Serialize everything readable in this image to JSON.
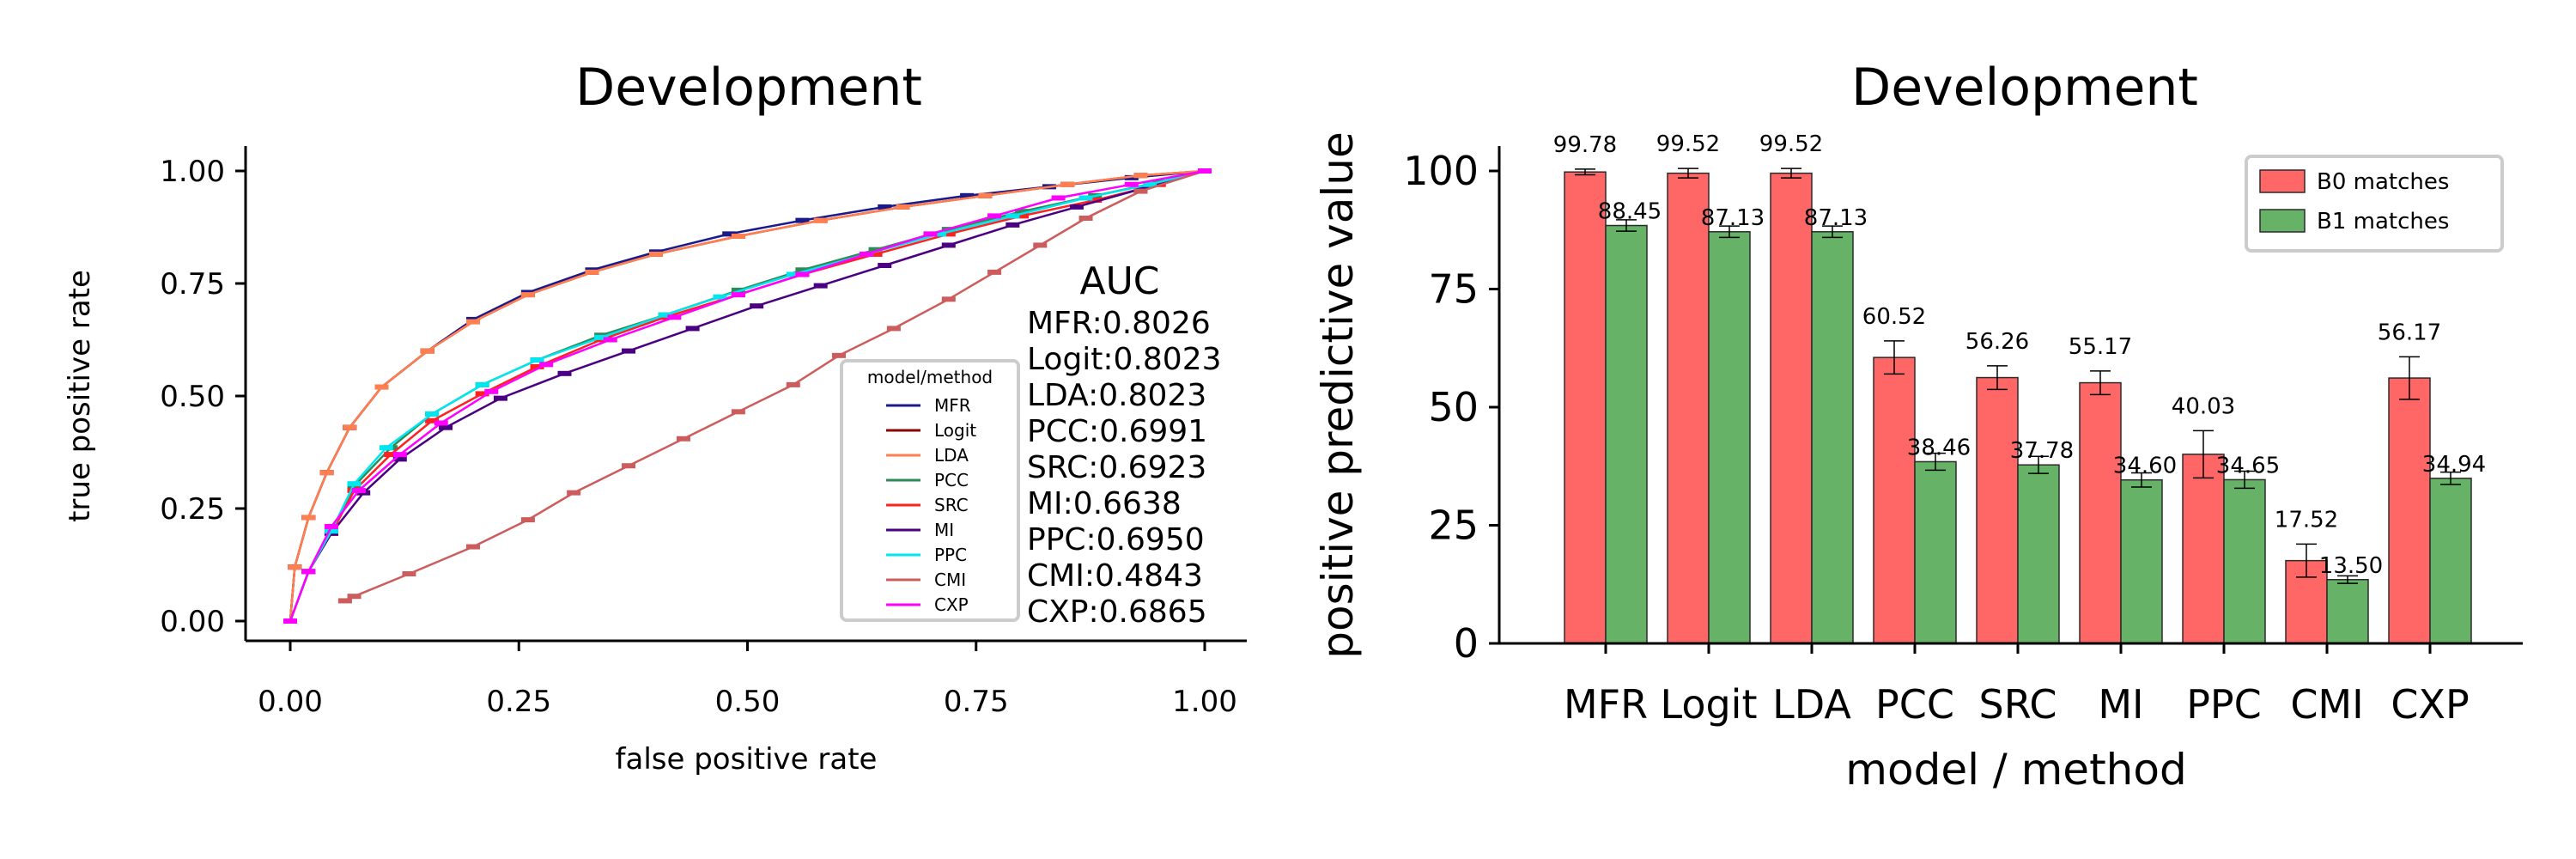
{
  "chart_data": [
    {
      "type": "line",
      "title": "Development",
      "xlabel": "false positive rate",
      "ylabel": "true positive rate",
      "xlim": [
        0,
        1
      ],
      "ylim": [
        0,
        1
      ],
      "xticks": [
        "0.00",
        "0.25",
        "0.50",
        "0.75",
        "1.00"
      ],
      "yticks": [
        "0.00",
        "0.25",
        "0.50",
        "0.75",
        "1.00"
      ],
      "grid": false,
      "legend": {
        "title": "model/method",
        "placement": "lower-right"
      },
      "auc_title": "AUC",
      "auc_labels": [
        "MFR:0.8026",
        "Logit:0.8023",
        "LDA:0.8023",
        "PCC:0.6991",
        "SRC:0.6923",
        "MI:0.6638",
        "PPC:0.6950",
        "CMI:0.4843",
        "CXP:0.6865"
      ],
      "series": [
        {
          "name": "MFR",
          "color": "#1a1a8c",
          "x": [
            0.0,
            0.005,
            0.02,
            0.04,
            0.065,
            0.1,
            0.15,
            0.2,
            0.26,
            0.33,
            0.4,
            0.48,
            0.56,
            0.65,
            0.74,
            0.83,
            0.92,
            1.0
          ],
          "y": [
            0.0,
            0.12,
            0.23,
            0.33,
            0.43,
            0.52,
            0.6,
            0.67,
            0.73,
            0.78,
            0.82,
            0.86,
            0.89,
            0.92,
            0.945,
            0.965,
            0.985,
            1.0
          ]
        },
        {
          "name": "Logit",
          "color": "#8b0000",
          "x": [
            0.0,
            0.005,
            0.02,
            0.04,
            0.065,
            0.1,
            0.15,
            0.2,
            0.26,
            0.33,
            0.4,
            0.49,
            0.58,
            0.67,
            0.76,
            0.85,
            0.93,
            1.0
          ],
          "y": [
            0.0,
            0.12,
            0.23,
            0.33,
            0.43,
            0.52,
            0.6,
            0.665,
            0.725,
            0.775,
            0.815,
            0.855,
            0.89,
            0.92,
            0.945,
            0.97,
            0.99,
            1.0
          ]
        },
        {
          "name": "LDA",
          "color": "#ff7f50",
          "x": [
            0.0,
            0.005,
            0.02,
            0.04,
            0.065,
            0.1,
            0.15,
            0.2,
            0.26,
            0.33,
            0.4,
            0.49,
            0.58,
            0.67,
            0.76,
            0.85,
            0.93,
            1.0
          ],
          "y": [
            0.0,
            0.12,
            0.23,
            0.33,
            0.43,
            0.52,
            0.6,
            0.665,
            0.725,
            0.775,
            0.815,
            0.855,
            0.89,
            0.92,
            0.945,
            0.97,
            0.99,
            1.0
          ]
        },
        {
          "name": "PCC",
          "color": "#2e8b57",
          "x": [
            0.0,
            0.02,
            0.045,
            0.07,
            0.11,
            0.155,
            0.21,
            0.27,
            0.34,
            0.41,
            0.49,
            0.56,
            0.64,
            0.72,
            0.8,
            0.88,
            0.95,
            1.0
          ],
          "y": [
            0.0,
            0.11,
            0.2,
            0.3,
            0.385,
            0.46,
            0.525,
            0.58,
            0.635,
            0.68,
            0.735,
            0.78,
            0.825,
            0.87,
            0.91,
            0.945,
            0.975,
            1.0
          ]
        },
        {
          "name": "SRC",
          "color": "#ff2020",
          "x": [
            0.0,
            0.02,
            0.045,
            0.07,
            0.11,
            0.155,
            0.21,
            0.27,
            0.34,
            0.41,
            0.49,
            0.56,
            0.64,
            0.72,
            0.8,
            0.88,
            0.95,
            1.0
          ],
          "y": [
            0.0,
            0.11,
            0.195,
            0.29,
            0.37,
            0.445,
            0.505,
            0.565,
            0.625,
            0.675,
            0.725,
            0.77,
            0.815,
            0.86,
            0.9,
            0.935,
            0.97,
            1.0
          ]
        },
        {
          "name": "MI",
          "color": "#4b0082",
          "x": [
            0.0,
            0.02,
            0.045,
            0.08,
            0.12,
            0.17,
            0.23,
            0.3,
            0.37,
            0.44,
            0.51,
            0.58,
            0.65,
            0.72,
            0.79,
            0.86,
            0.93,
            1.0
          ],
          "y": [
            0.0,
            0.11,
            0.195,
            0.285,
            0.36,
            0.43,
            0.495,
            0.55,
            0.6,
            0.65,
            0.7,
            0.745,
            0.79,
            0.835,
            0.88,
            0.92,
            0.96,
            1.0
          ]
        },
        {
          "name": "PPC",
          "color": "#00e5ee",
          "x": [
            0.0,
            0.02,
            0.045,
            0.07,
            0.105,
            0.155,
            0.21,
            0.27,
            0.34,
            0.41,
            0.47,
            0.55,
            0.63,
            0.71,
            0.79,
            0.87,
            0.94,
            1.0
          ],
          "y": [
            0.0,
            0.11,
            0.2,
            0.305,
            0.385,
            0.46,
            0.525,
            0.58,
            0.63,
            0.68,
            0.72,
            0.77,
            0.815,
            0.86,
            0.9,
            0.94,
            0.97,
            1.0
          ]
        },
        {
          "name": "CMI",
          "color": "#cd5c5c",
          "x": [
            0.06,
            0.07,
            0.13,
            0.2,
            0.26,
            0.31,
            0.37,
            0.43,
            0.49,
            0.55,
            0.6,
            0.66,
            0.72,
            0.77,
            0.82,
            0.87,
            0.93,
            1.0
          ],
          "y": [
            0.045,
            0.055,
            0.105,
            0.165,
            0.225,
            0.285,
            0.345,
            0.405,
            0.465,
            0.525,
            0.59,
            0.65,
            0.715,
            0.775,
            0.835,
            0.895,
            0.955,
            1.0
          ]
        },
        {
          "name": "CXP",
          "color": "#ff00ff",
          "x": [
            0.0,
            0.02,
            0.045,
            0.075,
            0.12,
            0.165,
            0.22,
            0.28,
            0.35,
            0.42,
            0.49,
            0.56,
            0.63,
            0.7,
            0.77,
            0.84,
            0.92,
            1.0
          ],
          "y": [
            0.0,
            0.11,
            0.21,
            0.29,
            0.37,
            0.44,
            0.51,
            0.57,
            0.625,
            0.675,
            0.725,
            0.77,
            0.815,
            0.86,
            0.9,
            0.94,
            0.97,
            1.0
          ]
        }
      ]
    },
    {
      "type": "bar",
      "title": "Development",
      "xlabel": "model / method",
      "ylabel": "positive predictive value",
      "ylim": [
        0,
        105
      ],
      "yticks": [
        "0",
        "25",
        "50",
        "75",
        "100"
      ],
      "grid": false,
      "legend": {
        "placement": "top-right"
      },
      "categories": [
        "MFR",
        "Logit",
        "LDA",
        "PCC",
        "SRC",
        "MI",
        "PPC",
        "CMI",
        "CXP"
      ],
      "series": [
        {
          "name": "B0 matches",
          "color": "#ff6666",
          "values": [
            99.78,
            99.52,
            99.52,
            60.52,
            56.26,
            55.17,
            40.03,
            17.52,
            56.17
          ],
          "labels": [
            "99.78",
            "99.52",
            "99.52",
            "60.52",
            "56.26",
            "55.17",
            "40.03",
            "17.52",
            "56.17"
          ],
          "errors": [
            0.6,
            1.0,
            1.0,
            3.5,
            2.5,
            2.5,
            5.0,
            3.5,
            4.5
          ]
        },
        {
          "name": "B1 matches",
          "color": "#66b266",
          "values": [
            88.45,
            87.13,
            87.13,
            38.46,
            37.78,
            34.6,
            34.65,
            13.5,
            34.94
          ],
          "labels": [
            "88.45",
            "87.13",
            "87.13",
            "38.46",
            "37.78",
            "34.60",
            "34.65",
            "13.50",
            "34.94"
          ],
          "errors": [
            1.2,
            1.2,
            1.2,
            1.8,
            1.8,
            1.5,
            1.8,
            0.8,
            1.3
          ]
        }
      ]
    }
  ]
}
